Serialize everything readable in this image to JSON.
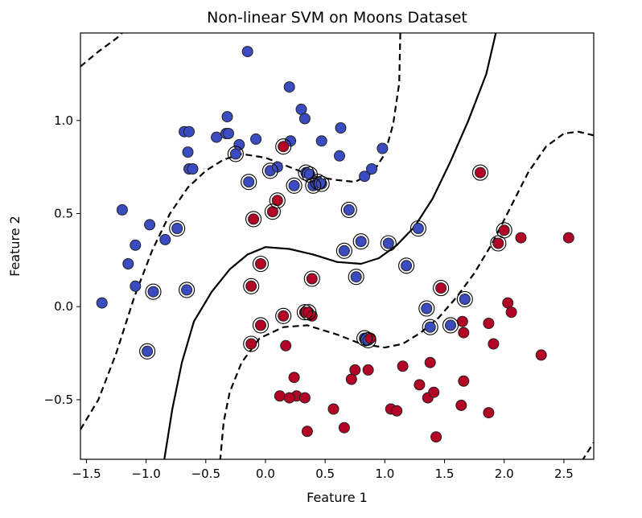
{
  "chart_data": {
    "type": "scatter",
    "title": "Non-linear SVM on Moons Dataset",
    "xlabel": "Feature 1",
    "ylabel": "Feature 2",
    "xlim": [
      -1.55,
      2.75
    ],
    "ylim": [
      -0.82,
      1.47
    ],
    "xticks": [
      -1.5,
      -1.0,
      -0.5,
      0.0,
      0.5,
      1.0,
      1.5,
      2.0,
      2.5
    ],
    "xtick_labels": [
      "−1.5",
      "−1.0",
      "−0.5",
      "0.0",
      "0.5",
      "1.0",
      "1.5",
      "2.0",
      "2.5"
    ],
    "yticks": [
      -0.5,
      0.0,
      0.5,
      1.0
    ],
    "ytick_labels": [
      "−0.5",
      "0.0",
      "0.5",
      "1.0"
    ],
    "grid": false,
    "colors": {
      "class0": "#3b4cc0",
      "class1": "#b40426",
      "edge": "#222222",
      "contour": "#000000"
    },
    "series": [
      {
        "class": 0,
        "points": [
          [
            -1.37,
            0.02
          ],
          [
            -1.2,
            0.52
          ],
          [
            -1.15,
            0.23
          ],
          [
            -1.09,
            0.33
          ],
          [
            -1.09,
            0.11
          ],
          [
            -0.97,
            0.44
          ],
          [
            -0.94,
            0.08
          ],
          [
            -0.99,
            -0.24
          ],
          [
            -0.84,
            0.36
          ],
          [
            -0.74,
            0.42
          ],
          [
            -0.66,
            0.09
          ],
          [
            -0.68,
            0.94
          ],
          [
            -0.64,
            0.94
          ],
          [
            -0.65,
            0.83
          ],
          [
            -0.64,
            0.74
          ],
          [
            -0.61,
            0.74
          ],
          [
            -0.41,
            0.91
          ],
          [
            -0.33,
            0.93
          ],
          [
            -0.31,
            0.93
          ],
          [
            -0.32,
            1.02
          ],
          [
            -0.25,
            0.82
          ],
          [
            -0.22,
            0.87
          ],
          [
            -0.14,
            0.67
          ],
          [
            -0.15,
            1.37
          ],
          [
            -0.08,
            0.9
          ],
          [
            0.04,
            0.73
          ],
          [
            0.1,
            0.75
          ],
          [
            0.21,
            0.89
          ],
          [
            0.2,
            1.18
          ],
          [
            0.24,
            0.65
          ],
          [
            0.3,
            1.06
          ],
          [
            0.33,
            1.01
          ],
          [
            0.34,
            0.72
          ],
          [
            0.37,
            0.71
          ],
          [
            0.4,
            0.65
          ],
          [
            0.44,
            0.67
          ],
          [
            0.47,
            0.66
          ],
          [
            0.47,
            0.89
          ],
          [
            0.63,
            0.96
          ],
          [
            0.62,
            0.81
          ],
          [
            0.66,
            0.3
          ],
          [
            0.7,
            0.52
          ],
          [
            0.8,
            0.35
          ],
          [
            0.83,
            0.7
          ],
          [
            0.89,
            0.74
          ],
          [
            0.98,
            0.85
          ],
          [
            0.76,
            0.16
          ],
          [
            0.83,
            -0.17
          ],
          [
            0.86,
            -0.18
          ],
          [
            1.03,
            0.34
          ],
          [
            1.18,
            0.22
          ],
          [
            1.28,
            0.42
          ],
          [
            1.35,
            -0.01
          ],
          [
            1.55,
            -0.1
          ],
          [
            1.67,
            0.04
          ],
          [
            1.38,
            -0.11
          ]
        ]
      },
      {
        "class": 1,
        "points": [
          [
            -0.1,
            0.47
          ],
          [
            -0.12,
            0.11
          ],
          [
            -0.12,
            -0.2
          ],
          [
            -0.04,
            0.23
          ],
          [
            -0.04,
            -0.1
          ],
          [
            0.06,
            0.51
          ],
          [
            0.1,
            0.57
          ],
          [
            0.15,
            0.86
          ],
          [
            0.15,
            -0.05
          ],
          [
            0.17,
            -0.21
          ],
          [
            0.26,
            -0.48
          ],
          [
            0.33,
            -0.49
          ],
          [
            0.33,
            -0.03
          ],
          [
            0.36,
            -0.03
          ],
          [
            0.39,
            0.15
          ],
          [
            0.39,
            -0.05
          ],
          [
            0.12,
            -0.48
          ],
          [
            0.2,
            -0.49
          ],
          [
            0.24,
            -0.38
          ],
          [
            0.35,
            -0.67
          ],
          [
            0.57,
            -0.55
          ],
          [
            0.66,
            -0.65
          ],
          [
            0.72,
            -0.39
          ],
          [
            0.75,
            -0.34
          ],
          [
            0.86,
            -0.34
          ],
          [
            0.88,
            -0.17
          ],
          [
            1.05,
            -0.55
          ],
          [
            1.1,
            -0.56
          ],
          [
            1.15,
            -0.32
          ],
          [
            1.29,
            -0.42
          ],
          [
            1.36,
            -0.49
          ],
          [
            1.38,
            -0.3
          ],
          [
            1.41,
            -0.46
          ],
          [
            1.43,
            -0.7
          ],
          [
            1.47,
            0.1
          ],
          [
            1.65,
            -0.08
          ],
          [
            1.66,
            -0.14
          ],
          [
            1.66,
            -0.4
          ],
          [
            1.64,
            -0.53
          ],
          [
            1.8,
            0.72
          ],
          [
            1.87,
            -0.09
          ],
          [
            1.87,
            -0.57
          ],
          [
            1.91,
            -0.2
          ],
          [
            1.95,
            0.34
          ],
          [
            2.0,
            0.41
          ],
          [
            2.03,
            0.02
          ],
          [
            2.06,
            -0.03
          ],
          [
            2.14,
            0.37
          ],
          [
            2.31,
            -0.26
          ],
          [
            2.54,
            0.37
          ]
        ]
      }
    ],
    "support_vectors": [
      [
        -0.99,
        -0.24
      ],
      [
        -0.94,
        0.08
      ],
      [
        -0.74,
        0.42
      ],
      [
        -0.66,
        0.09
      ],
      [
        -0.25,
        0.82
      ],
      [
        -0.14,
        0.67
      ],
      [
        0.04,
        0.73
      ],
      [
        0.24,
        0.65
      ],
      [
        0.34,
        0.72
      ],
      [
        0.37,
        0.71
      ],
      [
        0.4,
        0.65
      ],
      [
        0.44,
        0.67
      ],
      [
        0.47,
        0.66
      ],
      [
        0.66,
        0.3
      ],
      [
        0.7,
        0.52
      ],
      [
        0.8,
        0.35
      ],
      [
        0.76,
        0.16
      ],
      [
        0.83,
        -0.17
      ],
      [
        0.86,
        -0.18
      ],
      [
        1.03,
        0.34
      ],
      [
        1.18,
        0.22
      ],
      [
        1.28,
        0.42
      ],
      [
        1.35,
        -0.01
      ],
      [
        1.55,
        -0.1
      ],
      [
        1.67,
        0.04
      ],
      [
        1.38,
        -0.11
      ],
      [
        -0.1,
        0.47
      ],
      [
        -0.12,
        0.11
      ],
      [
        -0.12,
        -0.2
      ],
      [
        -0.04,
        0.23
      ],
      [
        -0.04,
        -0.1
      ],
      [
        0.06,
        0.51
      ],
      [
        0.1,
        0.57
      ],
      [
        0.15,
        0.86
      ],
      [
        0.15,
        -0.05
      ],
      [
        0.33,
        -0.03
      ],
      [
        0.36,
        -0.03
      ],
      [
        0.39,
        0.15
      ],
      [
        1.47,
        0.1
      ],
      [
        1.8,
        0.72
      ],
      [
        1.95,
        0.34
      ],
      [
        2.0,
        0.41
      ]
    ],
    "contours": [
      {
        "level": "decision boundary",
        "style": "solid",
        "points": [
          [
            -0.85,
            -0.83
          ],
          [
            -0.78,
            -0.55
          ],
          [
            -0.7,
            -0.3
          ],
          [
            -0.6,
            -0.08
          ],
          [
            -0.45,
            0.08
          ],
          [
            -0.3,
            0.2
          ],
          [
            -0.15,
            0.28
          ],
          [
            0.0,
            0.32
          ],
          [
            0.2,
            0.31
          ],
          [
            0.4,
            0.28
          ],
          [
            0.6,
            0.24
          ],
          [
            0.8,
            0.23
          ],
          [
            0.95,
            0.26
          ],
          [
            1.1,
            0.33
          ],
          [
            1.25,
            0.43
          ],
          [
            1.4,
            0.58
          ],
          [
            1.55,
            0.78
          ],
          [
            1.7,
            1.0
          ],
          [
            1.85,
            1.25
          ],
          [
            1.93,
            1.47
          ]
        ]
      },
      {
        "level": "margin +1",
        "style": "dashed",
        "points": [
          [
            -1.55,
            1.29
          ],
          [
            -1.4,
            1.37
          ],
          [
            -1.25,
            1.44
          ],
          [
            -1.2,
            1.47
          ]
        ]
      },
      {
        "level": "margin +1",
        "style": "dashed",
        "points": [
          [
            -1.55,
            -0.66
          ],
          [
            -1.4,
            -0.5
          ],
          [
            -1.25,
            -0.25
          ],
          [
            -1.1,
            0.05
          ],
          [
            -0.95,
            0.3
          ],
          [
            -0.8,
            0.5
          ],
          [
            -0.65,
            0.64
          ],
          [
            -0.5,
            0.73
          ],
          [
            -0.35,
            0.79
          ],
          [
            -0.2,
            0.82
          ],
          [
            0.0,
            0.8
          ],
          [
            0.2,
            0.75
          ],
          [
            0.4,
            0.7
          ],
          [
            0.6,
            0.68
          ],
          [
            0.75,
            0.67
          ],
          [
            0.9,
            0.72
          ],
          [
            1.0,
            0.82
          ],
          [
            1.07,
            0.98
          ],
          [
            1.12,
            1.2
          ],
          [
            1.13,
            1.47
          ]
        ]
      },
      {
        "level": "margin -1",
        "style": "dashed",
        "points": [
          [
            -0.38,
            -0.83
          ],
          [
            -0.35,
            -0.62
          ],
          [
            -0.3,
            -0.46
          ],
          [
            -0.2,
            -0.3
          ],
          [
            -0.05,
            -0.17
          ],
          [
            0.15,
            -0.11
          ],
          [
            0.35,
            -0.1
          ],
          [
            0.6,
            -0.15
          ],
          [
            0.8,
            -0.2
          ],
          [
            1.0,
            -0.22
          ],
          [
            1.15,
            -0.2
          ],
          [
            1.3,
            -0.14
          ],
          [
            1.45,
            -0.06
          ],
          [
            1.6,
            0.05
          ],
          [
            1.75,
            0.18
          ],
          [
            1.9,
            0.34
          ],
          [
            2.05,
            0.53
          ],
          [
            2.2,
            0.72
          ],
          [
            2.35,
            0.86
          ],
          [
            2.5,
            0.93
          ],
          [
            2.62,
            0.94
          ],
          [
            2.75,
            0.92
          ]
        ]
      },
      {
        "level": "margin -1",
        "style": "dashed",
        "points": [
          [
            2.65,
            -0.83
          ],
          [
            2.7,
            -0.78
          ],
          [
            2.75,
            -0.73
          ]
        ]
      }
    ]
  }
}
